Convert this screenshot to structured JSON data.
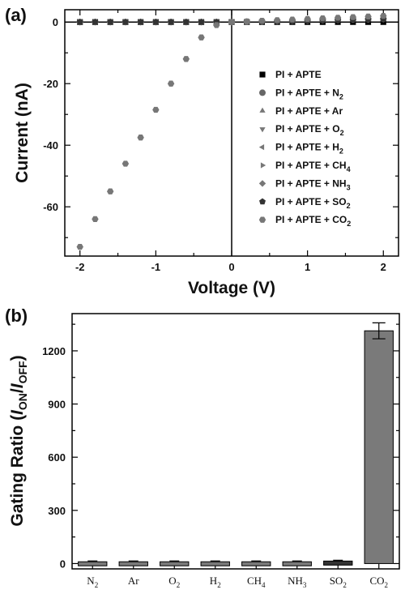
{
  "chart_data": [
    {
      "panel_label": "(a)",
      "type": "scatter",
      "xlabel": "Voltage (V)",
      "ylabel": "Current (nA)",
      "xlim": [
        -2.2,
        2.2
      ],
      "ylim": [
        -76,
        4
      ],
      "xticks": [
        -2,
        -1,
        0,
        1,
        2
      ],
      "yticks": [
        0,
        -20,
        -40,
        -60
      ],
      "zero_lines": true,
      "legend_position": "right",
      "series": [
        {
          "name": "PI + APTE",
          "marker": "square",
          "color": "#000000",
          "x": [
            -2,
            -1.8,
            -1.6,
            -1.4,
            -1.2,
            -1,
            -0.8,
            -0.6,
            -0.4,
            -0.2,
            0,
            0.2,
            0.4,
            0.6,
            0.8,
            1,
            1.2,
            1.4,
            1.6,
            1.8,
            2
          ],
          "y": [
            0,
            0,
            0,
            0,
            0,
            0,
            0,
            0,
            0,
            0,
            0,
            0,
            0,
            0,
            0,
            0,
            0,
            0,
            0,
            0,
            0
          ]
        },
        {
          "name": "PI + APTE + N2",
          "marker": "circle",
          "color": "#666666",
          "x": [
            -2,
            -1.8,
            -1.6,
            -1.4,
            -1.2,
            -1,
            -0.8,
            -0.6,
            -0.4,
            -0.2,
            0,
            0.2,
            0.4,
            0.6,
            0.8,
            1,
            1.2,
            1.4,
            1.6,
            1.8,
            2
          ],
          "y": [
            0,
            0,
            0,
            0,
            0,
            0,
            0,
            0,
            0,
            0,
            0,
            0.1,
            0.2,
            0.3,
            0.4,
            0.5,
            0.6,
            0.7,
            0.8,
            0.9,
            1.0
          ]
        },
        {
          "name": "PI + APTE + Ar",
          "marker": "triangle-up",
          "color": "#777777",
          "x": [
            -2,
            -1.8,
            -1.6,
            -1.4,
            -1.2,
            -1,
            -0.8,
            -0.6,
            -0.4,
            -0.2,
            0,
            0.2,
            0.4,
            0.6,
            0.8,
            1,
            1.2,
            1.4,
            1.6,
            1.8,
            2
          ],
          "y": [
            0,
            0,
            0,
            0,
            0,
            0,
            0,
            0,
            0,
            0,
            0,
            0.1,
            0.2,
            0.3,
            0.4,
            0.5,
            0.6,
            0.7,
            0.8,
            0.9,
            1.0
          ]
        },
        {
          "name": "PI + APTE + O2",
          "marker": "triangle-down",
          "color": "#777777",
          "x": [
            -2,
            -1.8,
            -1.6,
            -1.4,
            -1.2,
            -1,
            -0.8,
            -0.6,
            -0.4,
            -0.2,
            0,
            0.2,
            0.4,
            0.6,
            0.8,
            1,
            1.2,
            1.4,
            1.6,
            1.8,
            2
          ],
          "y": [
            0,
            0,
            0,
            0,
            0,
            0,
            0,
            0,
            0,
            0,
            0,
            0.1,
            0.2,
            0.3,
            0.4,
            0.5,
            0.6,
            0.7,
            0.8,
            0.9,
            1.0
          ]
        },
        {
          "name": "PI + APTE + H2",
          "marker": "triangle-left",
          "color": "#777777",
          "x": [
            -2,
            -1.8,
            -1.6,
            -1.4,
            -1.2,
            -1,
            -0.8,
            -0.6,
            -0.4,
            -0.2,
            0,
            0.2,
            0.4,
            0.6,
            0.8,
            1,
            1.2,
            1.4,
            1.6,
            1.8,
            2
          ],
          "y": [
            0,
            0,
            0,
            0,
            0,
            0,
            0,
            0,
            0,
            0,
            0,
            0.1,
            0.2,
            0.3,
            0.4,
            0.5,
            0.6,
            0.7,
            0.8,
            0.9,
            1.0
          ]
        },
        {
          "name": "PI + APTE + CH4",
          "marker": "triangle-right",
          "color": "#777777",
          "x": [
            -2,
            -1.8,
            -1.6,
            -1.4,
            -1.2,
            -1,
            -0.8,
            -0.6,
            -0.4,
            -0.2,
            0,
            0.2,
            0.4,
            0.6,
            0.8,
            1,
            1.2,
            1.4,
            1.6,
            1.8,
            2
          ],
          "y": [
            0,
            0,
            0,
            0,
            0,
            0,
            0,
            0,
            0,
            0,
            0,
            0.1,
            0.2,
            0.3,
            0.4,
            0.5,
            0.6,
            0.7,
            0.8,
            0.9,
            1.0
          ]
        },
        {
          "name": "PI + APTE + NH3",
          "marker": "diamond",
          "color": "#777777",
          "x": [
            -2,
            -1.8,
            -1.6,
            -1.4,
            -1.2,
            -1,
            -0.8,
            -0.6,
            -0.4,
            -0.2,
            0,
            0.2,
            0.4,
            0.6,
            0.8,
            1,
            1.2,
            1.4,
            1.6,
            1.8,
            2
          ],
          "y": [
            0,
            0,
            0,
            0,
            0,
            0,
            0,
            0,
            0,
            0,
            0,
            0.1,
            0.2,
            0.3,
            0.4,
            0.5,
            0.6,
            0.7,
            0.8,
            0.9,
            1.0
          ]
        },
        {
          "name": "PI + APTE + SO2",
          "marker": "pentagon",
          "color": "#333333",
          "x": [
            -2,
            -1.8,
            -1.6,
            -1.4,
            -1.2,
            -1,
            -0.8,
            -0.6,
            -0.4,
            -0.2,
            0,
            0.2,
            0.4,
            0.6,
            0.8,
            1,
            1.2,
            1.4,
            1.6,
            1.8,
            2
          ],
          "y": [
            0,
            0,
            0,
            0,
            0,
            0,
            0,
            0,
            0,
            0,
            0,
            0.1,
            0.2,
            0.3,
            0.4,
            0.5,
            0.6,
            0.7,
            0.8,
            0.9,
            1.0
          ]
        },
        {
          "name": "PI + APTE + CO2",
          "marker": "hexagon",
          "color": "#777777",
          "x": [
            -2,
            -1.8,
            -1.6,
            -1.4,
            -1.2,
            -1,
            -0.8,
            -0.6,
            -0.4,
            -0.2,
            0,
            0.2,
            0.4,
            0.6,
            0.8,
            1,
            1.2,
            1.4,
            1.6,
            1.8,
            2
          ],
          "y": [
            -73,
            -64,
            -55,
            -46,
            -37.5,
            -28.5,
            -20,
            -12,
            -5,
            -1,
            0,
            0.2,
            0.4,
            0.6,
            0.8,
            1.0,
            1.2,
            1.4,
            1.6,
            1.8,
            2.0
          ]
        }
      ]
    },
    {
      "panel_label": "(b)",
      "type": "bar",
      "xlabel": "",
      "ylabel": "Gating Ratio (I_ON/I_OFF)",
      "ylabel_parts": {
        "prefix": "Gating Ratio (",
        "i1": "I",
        "sub1": "ON",
        "slash": "/",
        "i2": "I",
        "sub2": "OFF",
        "suffix": ")"
      },
      "ylim": [
        -30,
        1410
      ],
      "yticks": [
        0,
        300,
        600,
        900,
        1200
      ],
      "categories": [
        "N2",
        "Ar",
        "O2",
        "H2",
        "CH4",
        "NH3",
        "SO2",
        "CO2"
      ],
      "categories_display": [
        {
          "base": "N",
          "sub": "2"
        },
        {
          "base": "Ar",
          "sub": ""
        },
        {
          "base": "O",
          "sub": "2"
        },
        {
          "base": "H",
          "sub": "2"
        },
        {
          "base": "CH",
          "sub": "4"
        },
        {
          "base": "NH",
          "sub": "3"
        },
        {
          "base": "SO",
          "sub": "2"
        },
        {
          "base": "CO",
          "sub": "2"
        }
      ],
      "values": [
        1,
        1,
        1,
        1,
        1,
        1,
        5,
        1313
      ],
      "errors": [
        0,
        0,
        0,
        0,
        0,
        0,
        0,
        45
      ],
      "colors": [
        "#7a7a7a",
        "#7a7a7a",
        "#7a7a7a",
        "#7a7a7a",
        "#7a7a7a",
        "#7a7a7a",
        "#333333",
        "#7a7a7a"
      ]
    }
  ]
}
